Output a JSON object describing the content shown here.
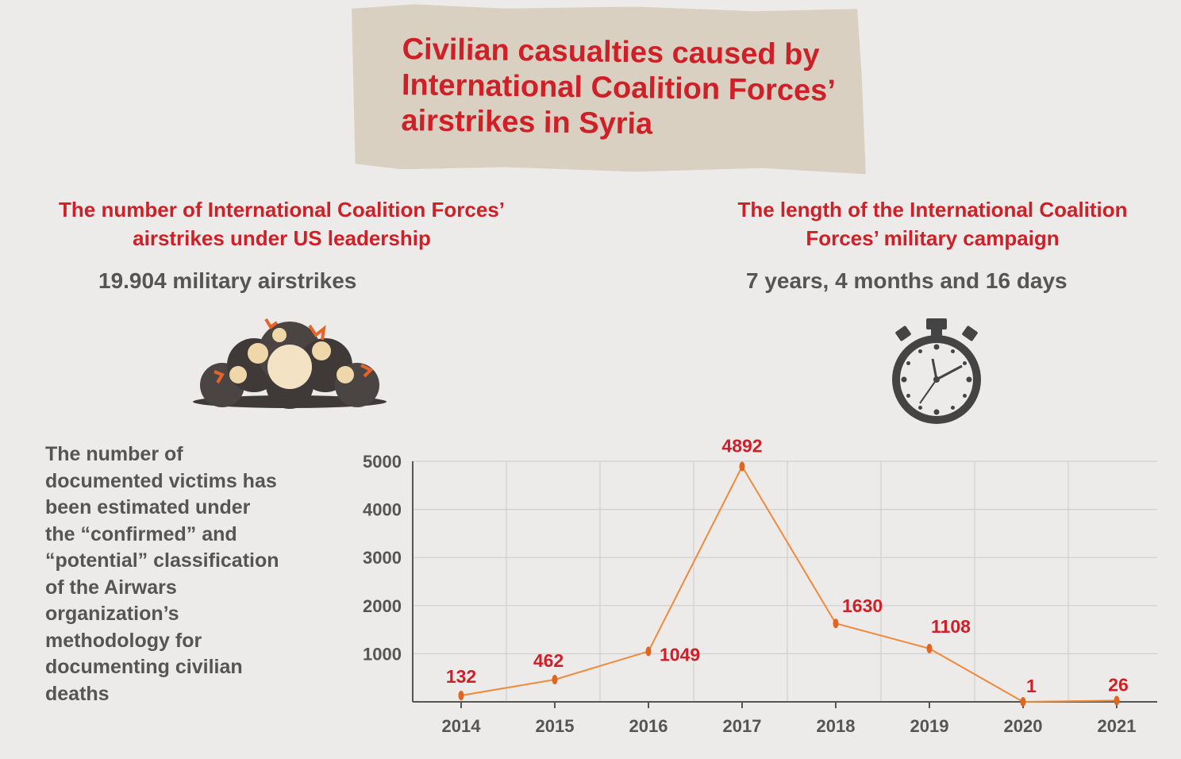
{
  "title": "Civilian casualties caused by International Coalition Forces’ airstrikes in Syria",
  "left_panel": {
    "heading": "The number of International Coalition Forces’ airstrikes under US leadership",
    "stat": "19.904 military airstrikes",
    "icon": "explosion-icon"
  },
  "right_panel": {
    "heading": "The length of the International Coalition Forces’ military campaign",
    "stat": "7 years, 4 months and 16 days",
    "icon": "stopwatch-icon"
  },
  "note": "The number of documented victims has been estimated under the “confirmed” and “potential” classification of the Airwars organization’s methodology for documenting civilian deaths",
  "colors": {
    "accent": "#cf2027",
    "line": "#ef8a3c",
    "point": "#e0661f",
    "text": "#555555",
    "paper": "#d9d0c2"
  },
  "chart_data": {
    "type": "line",
    "categories": [
      "2014",
      "2015",
      "2016",
      "2017",
      "2018",
      "2019",
      "2020",
      "2021"
    ],
    "values": [
      132,
      462,
      1049,
      4892,
      1630,
      1108,
      1,
      26
    ],
    "data_labels": [
      "132",
      "462",
      "1049",
      "4892",
      "1630",
      "1108",
      "1",
      "26"
    ],
    "ylim": [
      0,
      5000
    ],
    "yticks": [
      1000,
      2000,
      3000,
      4000,
      5000
    ],
    "ytick_labels": [
      "1000",
      "2000",
      "3000",
      "4000",
      "5000"
    ],
    "title": "",
    "xlabel": "",
    "ylabel": "",
    "grid": true,
    "legend": "none"
  }
}
